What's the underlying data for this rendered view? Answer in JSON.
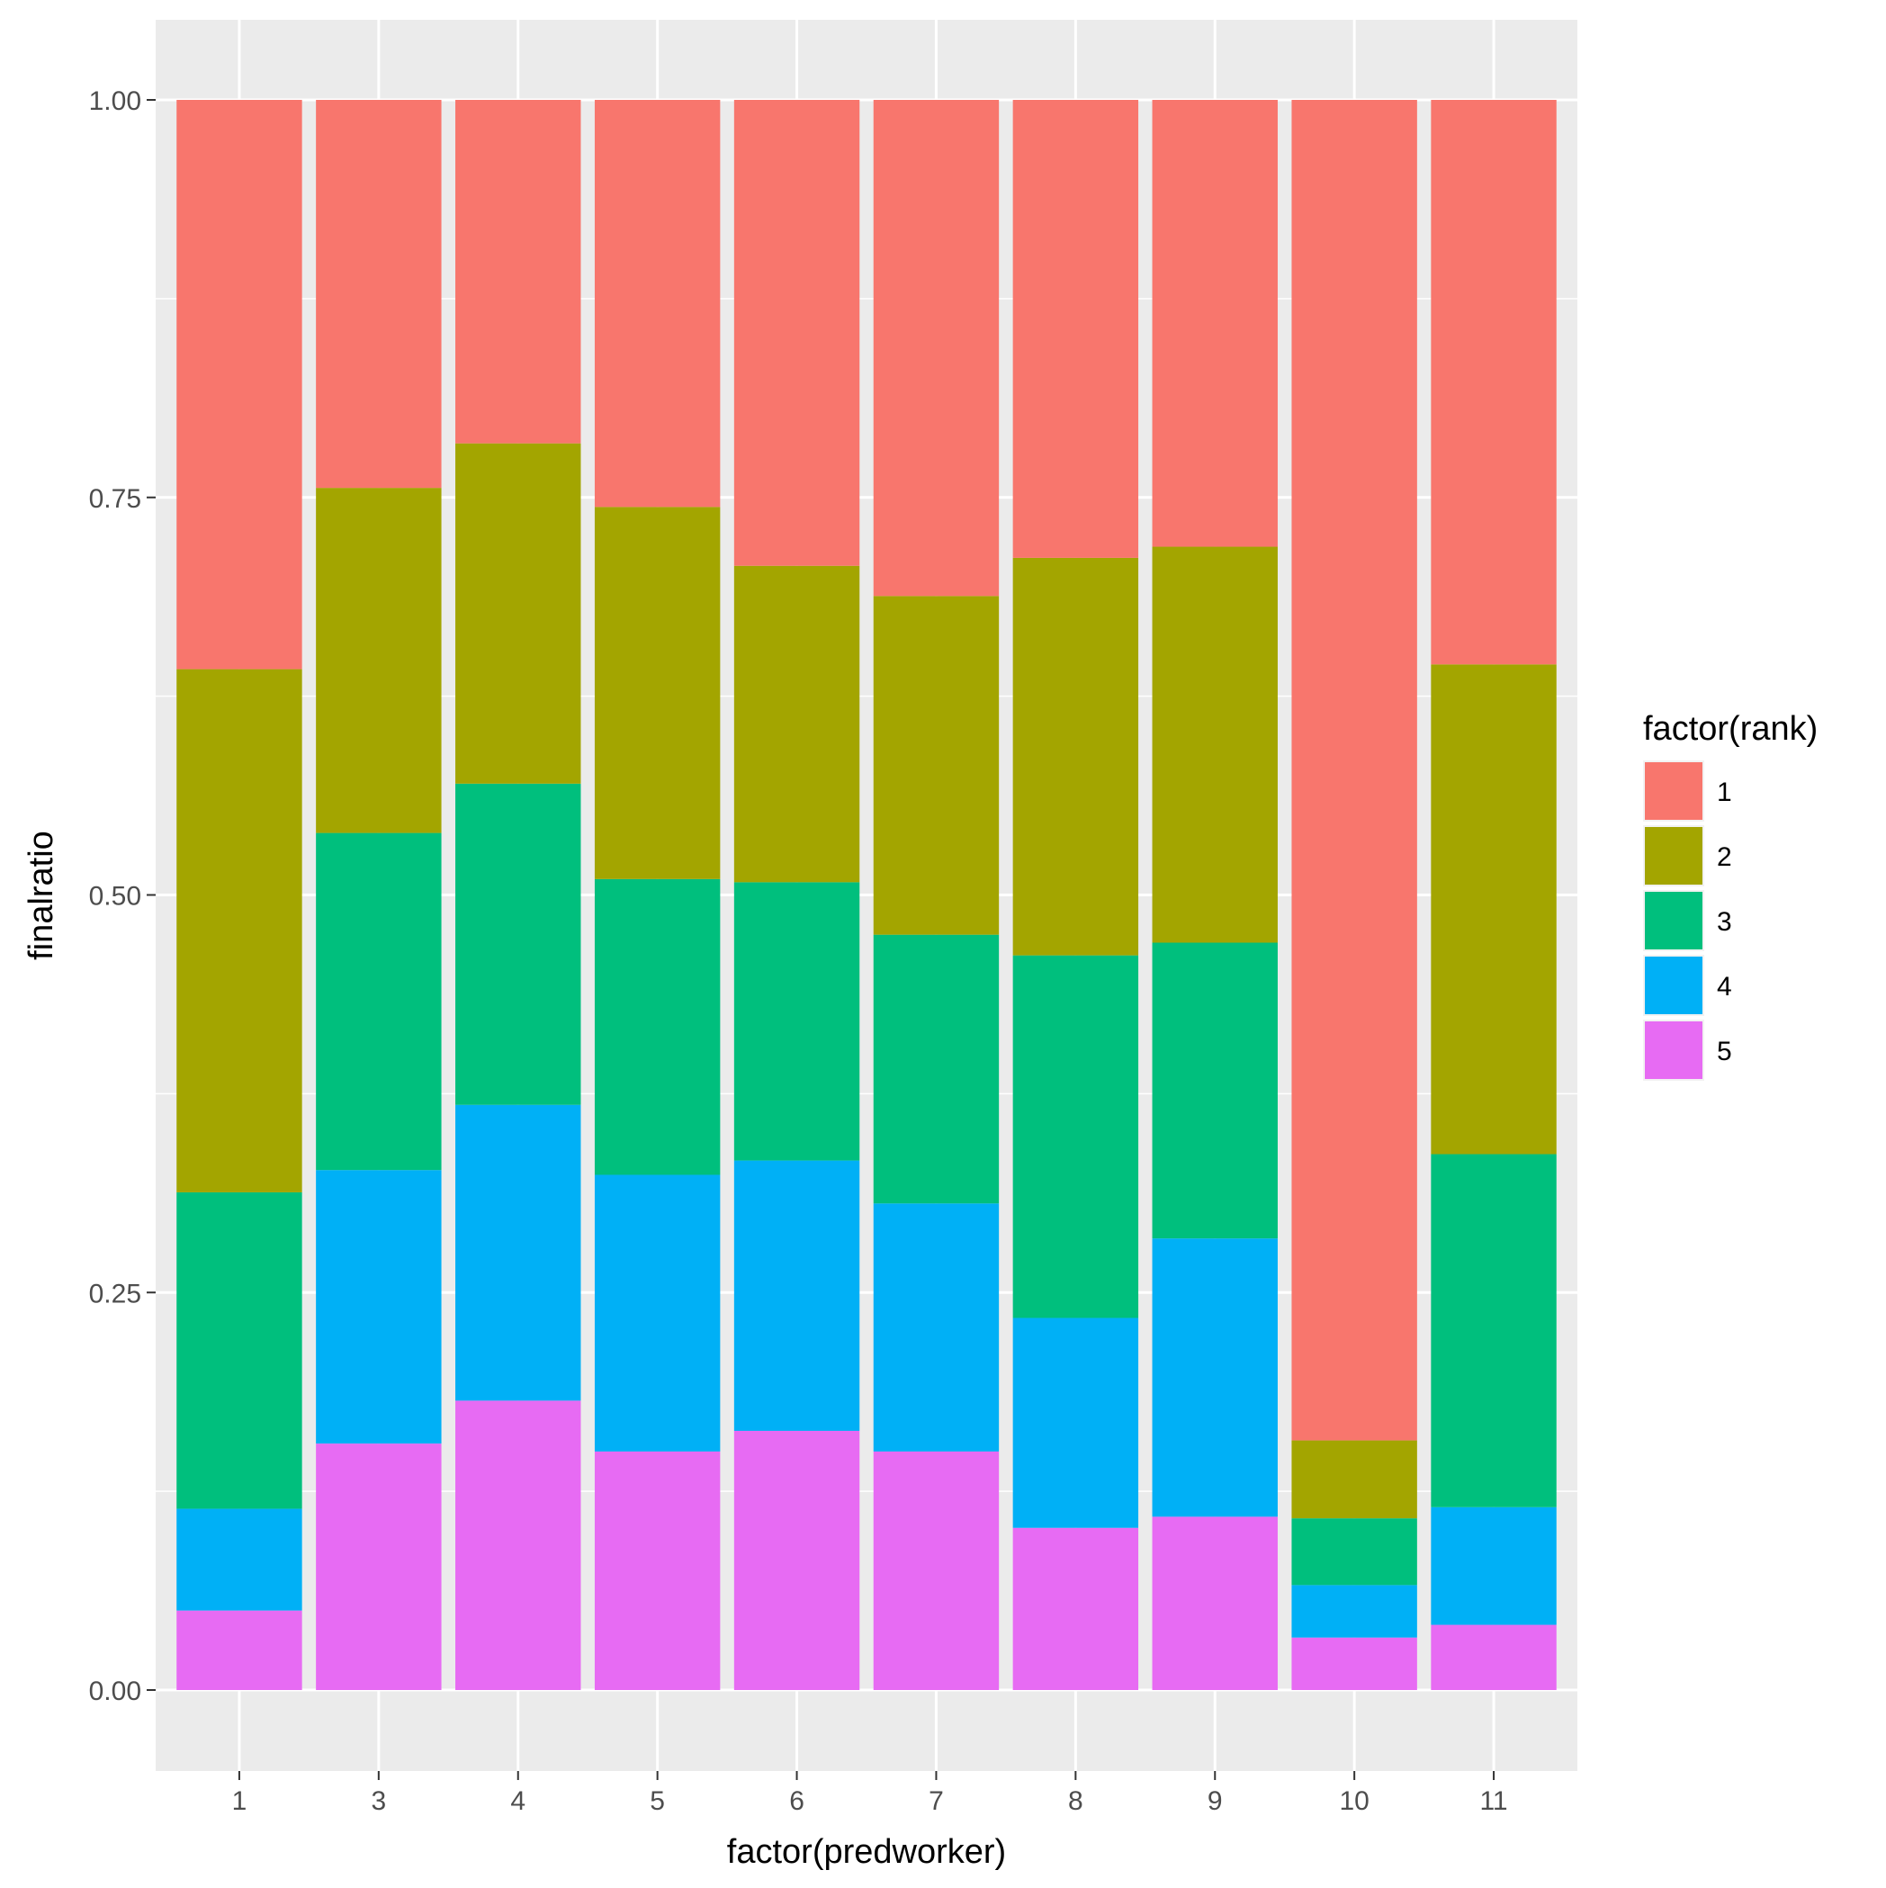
{
  "chart_data": {
    "type": "bar",
    "stacked": true,
    "title": "",
    "xlabel": "factor(predworker)",
    "ylabel": "finalratio",
    "ylim": [
      0,
      1
    ],
    "y_ticks": [
      0.0,
      0.25,
      0.5,
      0.75,
      1.0
    ],
    "y_tick_labels": [
      "0.00",
      "0.25",
      "0.50",
      "0.75",
      "1.00"
    ],
    "categories": [
      "1",
      "3",
      "4",
      "5",
      "6",
      "7",
      "8",
      "9",
      "10",
      "11"
    ],
    "legend": {
      "title": "factor(rank)",
      "position": "right",
      "entries": [
        "1",
        "2",
        "3",
        "4",
        "5"
      ]
    },
    "series": [
      {
        "name": "5",
        "color": "#E76BF3",
        "values": [
          0.05,
          0.155,
          0.182,
          0.15,
          0.163,
          0.15,
          0.102,
          0.109,
          0.033,
          0.041
        ]
      },
      {
        "name": "4",
        "color": "#00B0F6",
        "values": [
          0.064,
          0.172,
          0.186,
          0.174,
          0.17,
          0.156,
          0.132,
          0.175,
          0.033,
          0.074
        ]
      },
      {
        "name": "3",
        "color": "#00BF7D",
        "values": [
          0.199,
          0.212,
          0.202,
          0.186,
          0.175,
          0.169,
          0.228,
          0.186,
          0.042,
          0.222
        ]
      },
      {
        "name": "2",
        "color": "#A3A500",
        "values": [
          0.329,
          0.217,
          0.214,
          0.234,
          0.199,
          0.213,
          0.25,
          0.249,
          0.049,
          0.308
        ]
      },
      {
        "name": "1",
        "color": "#F8766D",
        "values": [
          0.358,
          0.244,
          0.216,
          0.256,
          0.293,
          0.312,
          0.288,
          0.281,
          0.843,
          0.355
        ]
      }
    ]
  }
}
